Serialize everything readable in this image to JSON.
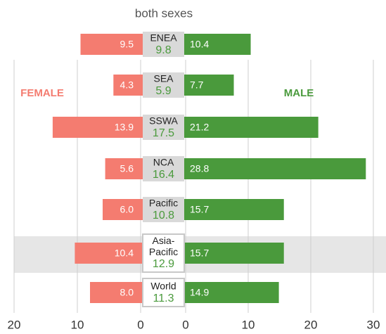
{
  "chart_data": {
    "type": "bar",
    "categories": [
      "ENEA",
      "SEA",
      "SSWA",
      "NCA",
      "Pacific",
      "Asia-Pacific",
      "World"
    ],
    "series": [
      {
        "name": "FEMALE",
        "color": "#f47c70",
        "axis": "x",
        "values": [
          9.5,
          4.3,
          13.9,
          5.6,
          6.0,
          10.4,
          8.0
        ],
        "value_labels": [
          "9.5",
          "4.3",
          "13.9",
          "5.6",
          "6.0",
          "10.4",
          "8.0"
        ]
      },
      {
        "name": "MALE",
        "color": "#4a9a3c",
        "axis": "x2",
        "values": [
          10.4,
          7.7,
          21.2,
          28.8,
          15.7,
          15.7,
          14.9
        ]
      },
      {
        "name": "both sexes",
        "color": "#4a9a3c",
        "values": [
          9.8,
          5.9,
          17.5,
          16.4,
          10.8,
          12.9,
          11.3
        ]
      }
    ],
    "xlim": [
      0,
      20
    ],
    "xticks": [
      0,
      10,
      20
    ],
    "x2lim": [
      0,
      30
    ],
    "x2ticks": [
      0,
      10,
      20,
      30
    ],
    "grid": true
  }
}
